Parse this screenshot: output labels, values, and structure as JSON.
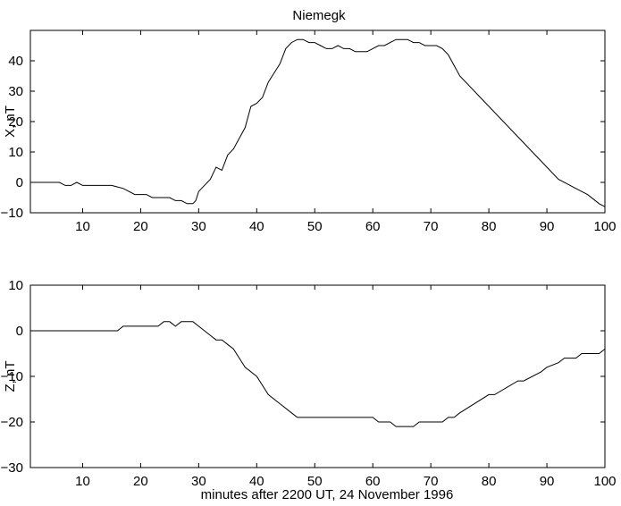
{
  "chart_data": [
    {
      "type": "line",
      "title": "Niemegk",
      "xlabel": "",
      "ylabel": "X, nT",
      "xlim": [
        1,
        100
      ],
      "ylim": [
        -10,
        50
      ],
      "xticks": [
        10,
        20,
        30,
        40,
        50,
        60,
        70,
        80,
        90,
        100
      ],
      "yticks": [
        -10,
        0,
        10,
        20,
        30,
        40
      ],
      "series": [
        {
          "x": [
            1,
            6,
            7,
            8,
            9,
            10,
            15,
            17,
            19,
            21,
            22,
            25,
            26,
            27,
            28,
            29,
            29.5,
            30,
            32,
            33,
            34,
            35,
            36,
            38,
            39,
            40,
            41,
            42,
            43,
            44,
            45,
            46,
            47,
            48,
            49,
            50,
            51,
            52,
            53,
            54,
            55,
            56,
            57,
            58,
            59,
            60,
            61,
            62,
            63,
            64,
            65,
            66,
            67,
            68,
            69,
            70,
            71,
            72,
            73,
            75,
            80,
            85,
            90,
            92,
            95,
            97,
            99,
            100
          ],
          "values": [
            0,
            0,
            -1,
            -1,
            0,
            -1,
            -1,
            -2,
            -4,
            -4,
            -5,
            -5,
            -6,
            -6,
            -7,
            -7,
            -6,
            -3,
            1,
            5,
            4,
            9,
            11,
            18,
            25,
            26,
            28,
            33,
            36,
            39,
            44,
            46,
            47,
            47,
            46,
            46,
            45,
            44,
            44,
            45,
            44,
            44,
            43,
            43,
            43,
            44,
            45,
            45,
            46,
            47,
            47,
            47,
            46,
            46,
            45,
            45,
            45,
            44,
            42,
            35,
            25,
            15,
            5,
            1,
            -2,
            -4,
            -7,
            -8
          ]
        }
      ]
    },
    {
      "type": "line",
      "title": "",
      "xlabel": "minutes after 2200 UT, 24 November 1996",
      "ylabel": "Z, nT",
      "xlim": [
        1,
        100
      ],
      "ylim": [
        -30,
        10
      ],
      "xticks": [
        10,
        20,
        30,
        40,
        50,
        60,
        70,
        80,
        90,
        100
      ],
      "yticks": [
        -30,
        -20,
        -10,
        0,
        10
      ],
      "series": [
        {
          "x": [
            1,
            16,
            17,
            23,
            24,
            25,
            26,
            27,
            29,
            30,
            32,
            33,
            34,
            35,
            36,
            37,
            38,
            40,
            42,
            44,
            46,
            47,
            48,
            55,
            60,
            61,
            63,
            64,
            67,
            68,
            72,
            73,
            74,
            75,
            80,
            81,
            85,
            86,
            89,
            90,
            92,
            93,
            95,
            96,
            99,
            100
          ],
          "values": [
            0,
            0,
            1,
            1,
            2,
            2,
            1,
            2,
            2,
            1,
            -1,
            -2,
            -2,
            -3,
            -4,
            -6,
            -8,
            -10,
            -14,
            -16,
            -18,
            -19,
            -19,
            -19,
            -19,
            -20,
            -20,
            -21,
            -21,
            -20,
            -20,
            -19,
            -19,
            -18,
            -14,
            -14,
            -11,
            -11,
            -9,
            -8,
            -7,
            -6,
            -6,
            -5,
            -5,
            -4
          ]
        }
      ]
    }
  ]
}
